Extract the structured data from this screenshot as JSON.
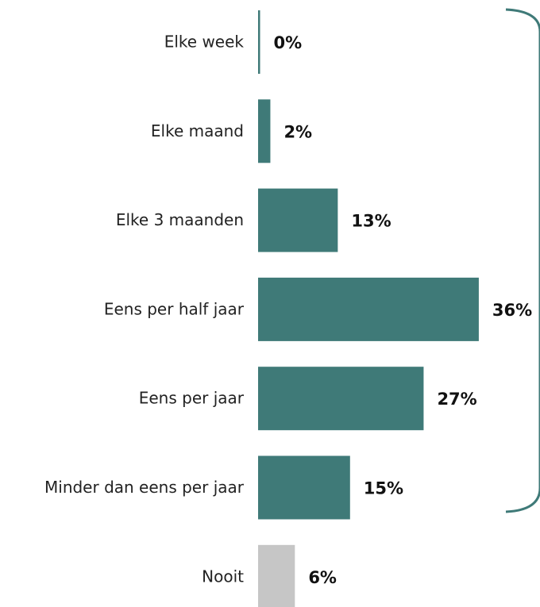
{
  "chart_data": {
    "type": "bar",
    "orientation": "horizontal",
    "categories": [
      "Elke week",
      "Elke maand",
      "Elke 3 maanden",
      "Eens per half jaar",
      "Eens per jaar",
      "Minder dan eens per jaar",
      "Nooit"
    ],
    "values": [
      0,
      2,
      13,
      36,
      27,
      15,
      6
    ],
    "value_labels": [
      "0%",
      "2%",
      "13%",
      "36%",
      "27%",
      "15%",
      "6%"
    ],
    "colors": [
      "#3f7a78",
      "#3f7a78",
      "#3f7a78",
      "#3f7a78",
      "#3f7a78",
      "#3f7a78",
      "#c6c6c6"
    ]
  }
}
